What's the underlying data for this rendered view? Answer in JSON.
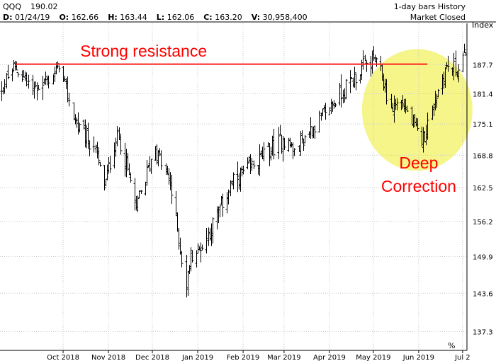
{
  "header": {
    "symbol": "QQQ",
    "last_price": "190.02",
    "bar_info": "1-day bars  History",
    "date_label": "D:",
    "date_value": "01/24/19",
    "open_label": "O:",
    "open_value": "162.66",
    "high_label": "H:",
    "high_value": "163.44",
    "low_label": "L:",
    "low_value": "162.06",
    "close_label": "C:",
    "close_value": "163.20",
    "volume_label": "V:",
    "volume_value": "30,958,400",
    "market_status": "Market Closed"
  },
  "axis": {
    "right_label": "Index",
    "percent_label": "%"
  },
  "colors": {
    "bars": "#000000",
    "resistance": "#ff2020",
    "highlight": "#f5f58a",
    "annotation": "#ff0000",
    "grid": "#c8c8c8"
  },
  "chart_data": {
    "type": "ohlc",
    "title": "",
    "ylabel": "Index",
    "xlabel": "",
    "y_scale": "log",
    "ylim": [
      134.3,
      197.0
    ],
    "grid": true,
    "y_ticks": [
      137.3,
      143.6,
      149.9,
      156.2,
      162.5,
      168.8,
      175.1,
      181.4,
      187.7
    ],
    "x_ticks": [
      "Oct 2018",
      "Nov 2018",
      "Dec 2018",
      "Jan 2019",
      "Feb 2019",
      "Mar 2019",
      "Apr 2019",
      "May 2019",
      "Jun 2019",
      "Jul 2"
    ],
    "x_tick_dates": [
      "2018-10-01",
      "2018-11-01",
      "2018-12-01",
      "2019-01-01",
      "2019-02-01",
      "2019-03-01",
      "2019-04-01",
      "2019-05-01",
      "2019-06-01",
      "2019-07-01"
    ],
    "anchors": [
      {
        "date": "2018-08-15",
        "close": 180.5
      },
      {
        "date": "2018-08-29",
        "close": 187.3
      },
      {
        "date": "2018-09-10",
        "close": 182.5
      },
      {
        "date": "2018-09-20",
        "close": 184.5
      },
      {
        "date": "2018-09-28",
        "close": 186.8
      },
      {
        "date": "2018-10-11",
        "close": 174.0
      },
      {
        "date": "2018-10-22",
        "close": 170.5
      },
      {
        "date": "2018-10-29",
        "close": 162.5
      },
      {
        "date": "2018-11-07",
        "close": 173.5
      },
      {
        "date": "2018-11-20",
        "close": 158.8
      },
      {
        "date": "2018-11-30",
        "close": 168.0
      },
      {
        "date": "2018-12-03",
        "close": 170.0
      },
      {
        "date": "2018-12-13",
        "close": 163.0
      },
      {
        "date": "2018-12-24",
        "close": 144.5
      },
      {
        "date": "2018-12-27",
        "close": 150.5
      },
      {
        "date": "2019-01-03",
        "close": 151.0
      },
      {
        "date": "2019-01-24",
        "close": 163.2
      },
      {
        "date": "2019-02-28",
        "close": 172.0
      },
      {
        "date": "2019-03-08",
        "close": 170.0
      },
      {
        "date": "2019-03-29",
        "close": 177.5
      },
      {
        "date": "2019-04-26",
        "close": 188.0
      },
      {
        "date": "2019-05-03",
        "close": 189.0
      },
      {
        "date": "2019-05-13",
        "close": 178.5
      },
      {
        "date": "2019-05-20",
        "close": 180.0
      },
      {
        "date": "2019-06-03",
        "close": 171.0
      },
      {
        "date": "2019-06-10",
        "close": 178.5
      },
      {
        "date": "2019-06-20",
        "close": 187.5
      },
      {
        "date": "2019-06-28",
        "close": 186.5
      },
      {
        "date": "2019-07-03",
        "close": 190.0
      }
    ],
    "resistance_level": 187.8,
    "resistance_range": [
      "2018-08-15",
      "2019-06-05"
    ],
    "highlight_center": {
      "date": "2019-05-31",
      "value": 178.0
    },
    "annotations": [
      {
        "text": "Strong resistance",
        "date": "2018-11-25",
        "value": 189.5
      },
      {
        "text": "Deep",
        "date": "2019-06-01",
        "value": 166.2
      },
      {
        "text": "Correction",
        "date": "2019-06-01",
        "value": 161.7
      }
    ]
  }
}
